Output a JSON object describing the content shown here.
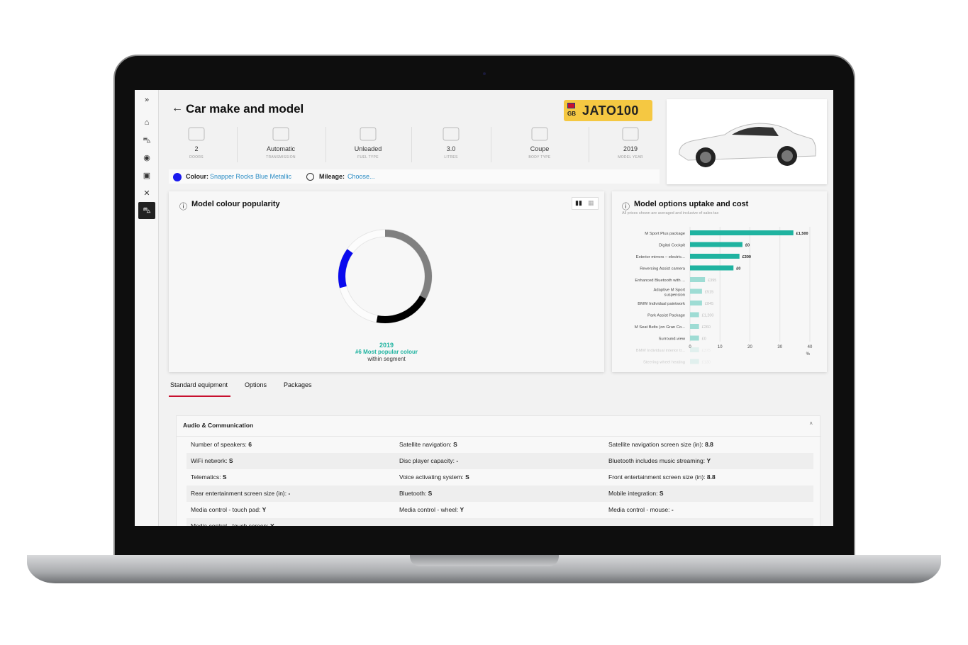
{
  "header": {
    "title": "Car make and model",
    "plate_country": "GB",
    "plate": "JATO100"
  },
  "sidebar": {
    "items": [
      {
        "icon": "expand-icon",
        "glyph": "»"
      },
      {
        "icon": "home-icon",
        "glyph": "⌂"
      },
      {
        "icon": "car-icon",
        "glyph": "⛍"
      },
      {
        "icon": "location-icon",
        "glyph": "◉"
      },
      {
        "icon": "document-icon",
        "glyph": "▣"
      },
      {
        "icon": "tools-icon",
        "glyph": "✕"
      },
      {
        "icon": "car-active-icon",
        "glyph": "⛍"
      }
    ]
  },
  "specs": [
    {
      "value": "2",
      "label": "DOORS",
      "icon": "door-icon"
    },
    {
      "value": "Automatic",
      "label": "TRANSMISSION",
      "icon": "gearbox-icon"
    },
    {
      "value": "Unleaded",
      "label": "FUEL TYPE",
      "icon": "fuel-icon"
    },
    {
      "value": "3.0",
      "label": "LITRES",
      "icon": "engine-icon"
    },
    {
      "value": "Coupe",
      "label": "BODY TYPE",
      "icon": "car-body-icon"
    },
    {
      "value": "2019",
      "label": "MODEL YEAR",
      "icon": "calendar-icon"
    }
  ],
  "colour": {
    "label": "Colour:",
    "value": "Snapper Rocks Blue Metallic",
    "swatch": "#1a1aee"
  },
  "mileage": {
    "label": "Mileage:",
    "value": "Choose..."
  },
  "colour_card": {
    "title": "Model colour popularity",
    "year": "2019",
    "rank": "#6 Most popular colour",
    "sub": "within segment"
  },
  "options_card": {
    "title": "Model options uptake and cost",
    "subtitle": "All prices shown are averaged and inclusive of sales tax"
  },
  "tabs": [
    "Standard equipment",
    "Options",
    "Packages"
  ],
  "accordion": {
    "title": "Audio & Communication",
    "rows": [
      [
        [
          "Number of speakers:",
          "6"
        ],
        [
          "Satellite navigation:",
          "S"
        ],
        [
          "Satellite navigation screen size (in):",
          "8.8"
        ]
      ],
      [
        [
          "WiFi network:",
          "S"
        ],
        [
          "Disc player capacity:",
          "-"
        ],
        [
          "Bluetooth includes music streaming:",
          "Y"
        ]
      ],
      [
        [
          "Telematics:",
          "S"
        ],
        [
          "Voice activating system:",
          "S"
        ],
        [
          "Front entertainment screen size (in):",
          "8.8"
        ]
      ],
      [
        [
          "Rear entertainment screen size (in):",
          "-"
        ],
        [
          "Bluetooth:",
          "S"
        ],
        [
          "Mobile integration:",
          "S"
        ]
      ],
      [
        [
          "Media control - touch pad:",
          "Y"
        ],
        [
          "Media control - wheel:",
          "Y"
        ],
        [
          "Media control - mouse:",
          "-"
        ]
      ],
      [
        [
          "Media control - touch screen:",
          "Y"
        ],
        [
          "",
          ""
        ],
        [
          "",
          ""
        ]
      ]
    ]
  },
  "chart_data": [
    {
      "type": "pie",
      "variant": "donut",
      "segments": [
        {
          "fraction": 0.33,
          "color": "#808080"
        },
        {
          "fraction": 0.2,
          "color": "#000000"
        },
        {
          "fraction": 0.18,
          "color": "#ffffff"
        },
        {
          "fraction": 0.14,
          "color": "#0a0aee"
        },
        {
          "fraction": 0.15,
          "color": "#ffffff"
        }
      ]
    },
    {
      "type": "bar",
      "orientation": "horizontal",
      "xlabel": "%",
      "xlim": [
        0,
        40
      ],
      "xticks": [
        0,
        10,
        20,
        30,
        40
      ],
      "grid": true,
      "categories": [
        "M Sport Plus package",
        "Digital Cockpit",
        "Exterior mirrors – electric...",
        "Reversing Assist camera",
        "Enhanced Bluetooth with ...",
        "Adaptive M Sport suspension",
        "BMW Individual paintwork",
        "Park Assist Package",
        "M Seat Belts (on Gran Co...",
        "Surround-view",
        "BMW Individual interior tr...",
        "Steering wheel heating"
      ],
      "values": [
        34.5,
        17.5,
        16.5,
        14.5,
        5,
        4,
        4,
        3,
        3,
        3,
        3,
        3
      ],
      "labels": [
        "£1,500",
        "£0",
        "£300",
        "£0",
        "£395",
        "£515",
        "£845",
        "£1,200",
        "£260",
        "£0",
        "£375",
        "£130"
      ],
      "colors": {
        "highlight": "#1fb3a0",
        "faded": "#9edcd4"
      },
      "highlighted_count": 4
    }
  ]
}
